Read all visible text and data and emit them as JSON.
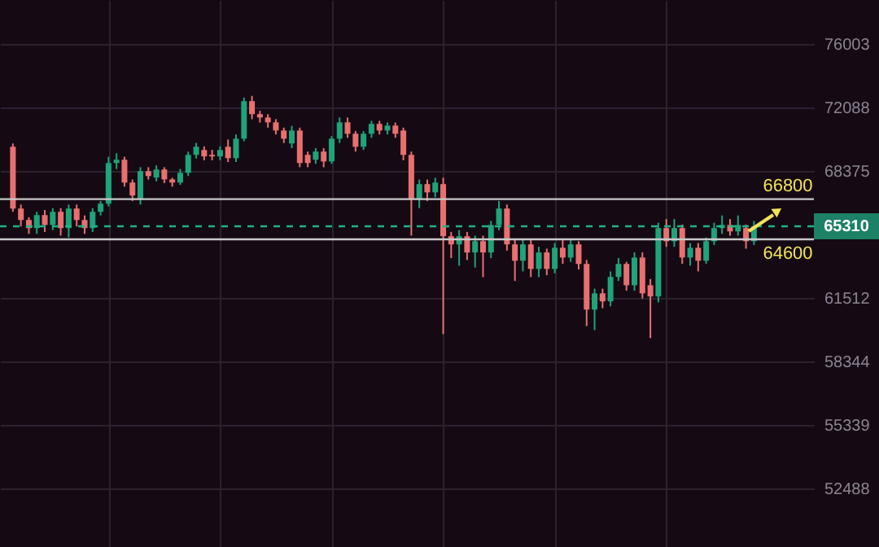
{
  "chart_data": {
    "type": "candlestick",
    "categories": [
      null,
      null,
      null,
      null,
      null,
      null,
      null,
      null,
      null,
      null,
      null,
      null,
      null,
      null,
      null,
      null,
      null,
      null,
      null,
      null,
      null,
      null,
      null,
      null,
      null,
      null,
      null,
      null,
      null,
      null,
      null,
      null,
      null,
      null,
      null,
      null,
      null,
      null,
      null,
      null,
      null,
      null,
      null,
      null,
      null,
      null,
      null,
      null,
      null,
      null,
      null,
      null,
      null,
      null,
      null,
      null,
      null,
      null,
      null,
      null,
      null,
      null,
      null,
      null,
      null,
      null,
      null,
      null,
      null,
      null,
      null,
      null,
      null,
      null,
      null,
      null,
      null,
      null,
      null,
      null,
      null,
      null,
      null,
      null,
      null,
      null,
      null,
      null,
      null,
      null,
      null,
      null,
      null,
      null
    ],
    "ohlc": [
      [
        69780,
        69970,
        66100,
        66280
      ],
      [
        66280,
        66500,
        65300,
        65650
      ],
      [
        65650,
        65800,
        64900,
        65210
      ],
      [
        65210,
        66100,
        64900,
        65920
      ],
      [
        65920,
        66200,
        65000,
        65380
      ],
      [
        65380,
        66300,
        65100,
        66100
      ],
      [
        66100,
        66300,
        64800,
        65210
      ],
      [
        65210,
        66500,
        64700,
        66280
      ],
      [
        66280,
        66500,
        65300,
        65650
      ],
      [
        65650,
        65900,
        64900,
        65210
      ],
      [
        65210,
        66300,
        65000,
        66100
      ],
      [
        66100,
        66700,
        65900,
        66550
      ],
      [
        66550,
        69200,
        66400,
        68840
      ],
      [
        68840,
        69400,
        68500,
        69030
      ],
      [
        69030,
        69200,
        67500,
        67730
      ],
      [
        67730,
        67900,
        66700,
        67000
      ],
      [
        66820,
        68600,
        66500,
        68375
      ],
      [
        68375,
        68600,
        67900,
        68100
      ],
      [
        68010,
        68700,
        67800,
        68470
      ],
      [
        68470,
        68600,
        67700,
        67910
      ],
      [
        67910,
        68000,
        67500,
        67730
      ],
      [
        67730,
        68500,
        67600,
        68280
      ],
      [
        68280,
        69500,
        68100,
        69310
      ],
      [
        69310,
        70000,
        69100,
        69780
      ],
      [
        69590,
        69800,
        69000,
        69220
      ],
      [
        69310,
        69600,
        69000,
        69220
      ],
      [
        69220,
        69800,
        69000,
        69590
      ],
      [
        69780,
        70200,
        68900,
        69120
      ],
      [
        69120,
        70500,
        68900,
        70250
      ],
      [
        70250,
        72700,
        70100,
        72480
      ],
      [
        72480,
        72800,
        71400,
        71700
      ],
      [
        71700,
        71900,
        71200,
        71500
      ],
      [
        71500,
        71700,
        70900,
        71210
      ],
      [
        71210,
        71400,
        70500,
        70730
      ],
      [
        70730,
        70900,
        70000,
        70250
      ],
      [
        69970,
        71000,
        69700,
        70730
      ],
      [
        70730,
        70900,
        68600,
        68840
      ],
      [
        69310,
        69500,
        68600,
        68840
      ],
      [
        69030,
        69700,
        68800,
        69500
      ],
      [
        69500,
        69700,
        68600,
        68930
      ],
      [
        68930,
        70400,
        68800,
        70250
      ],
      [
        70250,
        71500,
        70000,
        71210
      ],
      [
        71210,
        71500,
        70300,
        70540
      ],
      [
        70540,
        70700,
        69500,
        69780
      ],
      [
        69780,
        70700,
        69600,
        70540
      ],
      [
        70540,
        71300,
        70300,
        71120
      ],
      [
        71120,
        71300,
        70500,
        70730
      ],
      [
        70730,
        71200,
        70500,
        71020
      ],
      [
        71020,
        71200,
        70300,
        70540
      ],
      [
        70730,
        70900,
        69000,
        69310
      ],
      [
        69310,
        69500,
        64800,
        66820
      ],
      [
        66820,
        67900,
        66300,
        67640
      ],
      [
        67640,
        67900,
        66700,
        67180
      ],
      [
        67180,
        68000,
        66900,
        67730
      ],
      [
        67640,
        68000,
        59700,
        64770
      ],
      [
        64770,
        65000,
        63600,
        64330
      ],
      [
        64330,
        65100,
        63200,
        64770
      ],
      [
        64770,
        65000,
        63500,
        63900
      ],
      [
        63900,
        64800,
        63100,
        64500
      ],
      [
        64500,
        64800,
        62600,
        63900
      ],
      [
        63900,
        65600,
        63600,
        65380
      ],
      [
        65380,
        66700,
        65100,
        66280
      ],
      [
        66280,
        66500,
        64000,
        64330
      ],
      [
        64330,
        64600,
        62400,
        63460
      ],
      [
        63460,
        64600,
        62900,
        64330
      ],
      [
        64330,
        64600,
        62600,
        63030
      ],
      [
        63030,
        64200,
        62600,
        63900
      ],
      [
        63900,
        64100,
        62700,
        63030
      ],
      [
        63030,
        64400,
        62800,
        64150
      ],
      [
        64150,
        64600,
        63300,
        63630
      ],
      [
        63630,
        64600,
        63400,
        64330
      ],
      [
        64330,
        64500,
        63000,
        63290
      ],
      [
        63290,
        63500,
        60100,
        60930
      ],
      [
        60930,
        62000,
        59900,
        61760
      ],
      [
        61760,
        62000,
        61000,
        61350
      ],
      [
        61350,
        62900,
        61100,
        62610
      ],
      [
        62610,
        63600,
        62400,
        63290
      ],
      [
        63290,
        63400,
        61900,
        62180
      ],
      [
        62180,
        63900,
        61900,
        63630
      ],
      [
        63630,
        63900,
        61500,
        61760
      ],
      [
        62180,
        62500,
        59500,
        61600
      ],
      [
        61600,
        65500,
        61300,
        65210
      ],
      [
        65210,
        65700,
        64200,
        64500
      ],
      [
        64500,
        65700,
        64200,
        65210
      ],
      [
        65210,
        65400,
        63300,
        63630
      ],
      [
        63630,
        64400,
        63200,
        64150
      ],
      [
        64150,
        64400,
        62900,
        63460
      ],
      [
        63460,
        64700,
        63300,
        64500
      ],
      [
        64500,
        65500,
        64300,
        65210
      ],
      [
        65210,
        65900,
        64900,
        65380
      ],
      [
        65380,
        65700,
        64800,
        65030
      ],
      [
        65030,
        65900,
        64800,
        65380
      ],
      [
        65210,
        65400,
        64100,
        64500
      ],
      [
        64500,
        65600,
        64300,
        65310
      ]
    ],
    "colors": [
      "#e8706f",
      "#e8706f",
      "#e8706f",
      "#1fa37a",
      "#e8706f",
      "#1fa37a",
      "#e8706f",
      "#1fa37a",
      "#e8706f",
      "#e8706f",
      "#1fa37a",
      "#1fa37a",
      "#1fa37a",
      "#1fa37a",
      "#e8706f",
      "#e8706f",
      "#1fa37a",
      "#e8706f",
      "#1fa37a",
      "#e8706f",
      "#e8706f",
      "#1fa37a",
      "#1fa37a",
      "#1fa37a",
      "#e8706f",
      "#e8706f",
      "#1fa37a",
      "#e8706f",
      "#1fa37a",
      "#1fa37a",
      "#e8706f",
      "#e8706f",
      "#e8706f",
      "#e8706f",
      "#e8706f",
      "#1fa37a",
      "#e8706f",
      "#e8706f",
      "#1fa37a",
      "#e8706f",
      "#1fa37a",
      "#1fa37a",
      "#e8706f",
      "#e8706f",
      "#1fa37a",
      "#1fa37a",
      "#e8706f",
      "#1fa37a",
      "#e8706f",
      "#e8706f",
      "#e8706f",
      "#1fa37a",
      "#e8706f",
      "#1fa37a",
      "#e8706f",
      "#e8706f",
      "#1fa37a",
      "#e8706f",
      "#1fa37a",
      "#e8706f",
      "#1fa37a",
      "#1fa37a",
      "#e8706f",
      "#e8706f",
      "#1fa37a",
      "#e8706f",
      "#1fa37a",
      "#e8706f",
      "#1fa37a",
      "#e8706f",
      "#1fa37a",
      "#e8706f",
      "#e8706f",
      "#1fa37a",
      "#e8706f",
      "#1fa37a",
      "#1fa37a",
      "#e8706f",
      "#1fa37a",
      "#e8706f",
      "#e8706f",
      "#1fa37a",
      "#e8706f",
      "#1fa37a",
      "#e8706f",
      "#1fa37a",
      "#e8706f",
      "#1fa37a",
      "#1fa37a",
      "#1fa37a",
      "#e8706f",
      "#1fa37a",
      "#e8706f",
      "#1fa37a"
    ],
    "log": true,
    "ylim": [
      50000,
      78850
    ],
    "yticks": [
      52488,
      55339,
      58344,
      61512,
      68375,
      72088,
      76003
    ],
    "grid": true,
    "ref_lines": [
      {
        "axis": "y",
        "value": 66800,
        "label": "66800",
        "color": "#c8c8c8"
      },
      {
        "axis": "y",
        "value": 64600,
        "label": "64600",
        "color": "#c8c8c8"
      },
      {
        "axis": "y",
        "value": 65310,
        "label": "65310",
        "color": "#1fb389",
        "line_style": "dashed"
      }
    ]
  }
}
